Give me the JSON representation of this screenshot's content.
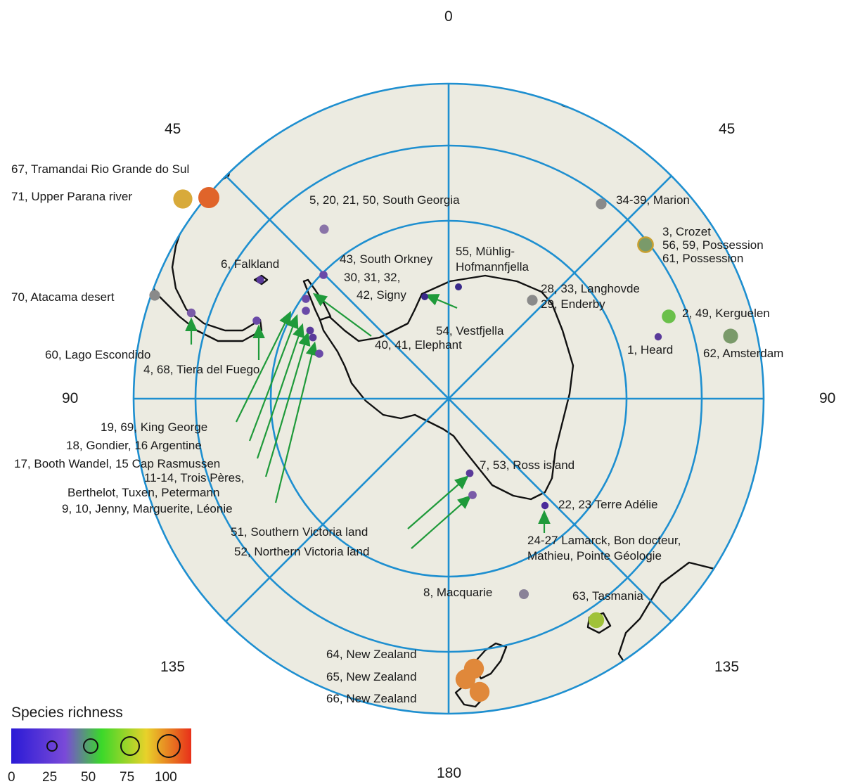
{
  "degree_labels": {
    "top": "0",
    "upper_left": "45",
    "upper_right": "45",
    "left": "90",
    "right": "90",
    "lower_left": "135",
    "lower_right": "135",
    "bottom": "180"
  },
  "legend": {
    "title": "Species richness",
    "ticks": [
      "0",
      "25",
      "50",
      "75",
      "100"
    ],
    "gradient_colors": [
      "#2a1ad6",
      "#7a4ad8",
      "#3ad82a",
      "#e8d22a",
      "#e8301a"
    ]
  },
  "sites": [
    {
      "key": "tramandai",
      "label": "67, Tramandai Rio Grande do Sul",
      "color": "#e0642a",
      "richness": 92
    },
    {
      "key": "upper-parana",
      "label": "71, Upper Parana river",
      "color": "#d8aa3a",
      "richness": 80
    },
    {
      "key": "south-georgia",
      "label": "5, 20, 21, 50, South Georgia",
      "color": "#8a74a8",
      "richness": 22
    },
    {
      "key": "marion",
      "label": "34-39, Marion",
      "color": "#8a8a8a",
      "richness": 30
    },
    {
      "key": "crozet",
      "label": "3, Crozet",
      "color": "#7a9a6a",
      "richness": 55
    },
    {
      "key": "possession-a",
      "label": "56, 59, Possession",
      "color": "#7a9a6a",
      "richness": 55
    },
    {
      "key": "possession-b",
      "label": "61, Possession",
      "color": "#7a9a6a",
      "richness": 55
    },
    {
      "key": "falkland",
      "label": "6, Falkland",
      "color": "#5a3a9a",
      "richness": 12
    },
    {
      "key": "south-orkney",
      "label": "43, South Orkney",
      "color": "#6a4aa8",
      "richness": 15
    },
    {
      "key": "signy-a",
      "label": "30, 31, 32,",
      "color": "#6a4aa8",
      "richness": 15
    },
    {
      "key": "signy-b",
      "label": "42, Signy",
      "color": "#6a4aa8",
      "richness": 15
    },
    {
      "key": "muhlig",
      "label": "55, Mühlig-",
      "color": "#3a2a8a",
      "richness": 8
    },
    {
      "key": "hofmannfjella",
      "label": "Hofmannfjella",
      "color": "#3a2a8a",
      "richness": 8
    },
    {
      "key": "langhovde",
      "label": "28, 33, Langhovde",
      "color": "#8a8a8a",
      "richness": 30
    },
    {
      "key": "enderby",
      "label": "29, Enderby",
      "color": "#8a8a8a",
      "richness": 30
    },
    {
      "key": "atacama",
      "label": "70, Atacama desert",
      "color": "#8a8a8a",
      "richness": 30
    },
    {
      "key": "vestfjella",
      "label": "54, Vestfjella",
      "color": "#3a2a8a",
      "richness": 8
    },
    {
      "key": "kerguelen",
      "label": "2, 49, Kerguelen",
      "color": "#6ac04a",
      "richness": 48
    },
    {
      "key": "heard",
      "label": "1, Heard",
      "color": "#5a3a9a",
      "richness": 10
    },
    {
      "key": "amsterdam",
      "label": "62, Amsterdam",
      "color": "#7a9a6a",
      "richness": 55
    },
    {
      "key": "elephant",
      "label": "40, 41, Elephant",
      "color": "#5a3a9a",
      "richness": 15
    },
    {
      "key": "lago-escondido",
      "label": "60, Lago Escondido",
      "color": "#7a5aa8",
      "richness": 18
    },
    {
      "key": "tierra-del-fuego",
      "label": "4, 68, Tiera del Fuego",
      "color": "#6a4aa8",
      "richness": 15
    },
    {
      "key": "king-george",
      "label": "19, 69, King George",
      "color": "#6a4aa8",
      "richness": 15
    },
    {
      "key": "gondier",
      "label": "18, Gondier, 16 Argentine",
      "color": "#6a4aa8",
      "richness": 15
    },
    {
      "key": "booth-wandel",
      "label": "17, Booth Wandel, 15 Cap Rasmussen",
      "color": "#5a3a9a",
      "richness": 12
    },
    {
      "key": "trois-peres",
      "label": "11-14, Trois Pères,",
      "color": "#5a3a9a",
      "richness": 12
    },
    {
      "key": "berthelot",
      "label": "Berthelot, Tuxen, Petermann",
      "color": "#5a3a9a",
      "richness": 12
    },
    {
      "key": "jenny",
      "label": "9, 10, Jenny, Marguerite, Léonie",
      "color": "#6a4aa8",
      "richness": 15
    },
    {
      "key": "ross-island",
      "label": "7, 53, Ross island",
      "color": "#5a3a9a",
      "richness": 12
    },
    {
      "key": "terre-adelie",
      "label": "22, 23 Terre Adélie",
      "color": "#4a2a9a",
      "richness": 10
    },
    {
      "key": "southern-victoria",
      "label": "51, Southern Victoria land",
      "color": "#5a3a9a",
      "richness": 12
    },
    {
      "key": "northern-victoria",
      "label": "52, Northern Victoria land",
      "color": "#7a5aa8",
      "richness": 16
    },
    {
      "key": "lamarck",
      "label": "24-27 Lamarck, Bon docteur,",
      "color": "#4a2a9a",
      "richness": 10
    },
    {
      "key": "mathieu",
      "label": "Mathieu, Pointe Géologie",
      "color": "#4a2a9a",
      "richness": 10
    },
    {
      "key": "macquarie",
      "label": "8, Macquarie",
      "color": "#8a8298",
      "richness": 25
    },
    {
      "key": "tasmania",
      "label": "63, Tasmania",
      "color": "#a0c23a",
      "richness": 60
    },
    {
      "key": "new-zealand-64",
      "label": "64, New Zealand",
      "color": "#e0883a",
      "richness": 85
    },
    {
      "key": "new-zealand-65",
      "label": "65, New Zealand",
      "color": "#e0883a",
      "richness": 85
    },
    {
      "key": "new-zealand-66",
      "label": "66, New Zealand",
      "color": "#e0883a",
      "richness": 85
    }
  ],
  "colors": {
    "ocean": "#ecebe1",
    "graticule": "#1e8fd0",
    "coast": "#111111",
    "arrow": "#1f9a3a"
  }
}
